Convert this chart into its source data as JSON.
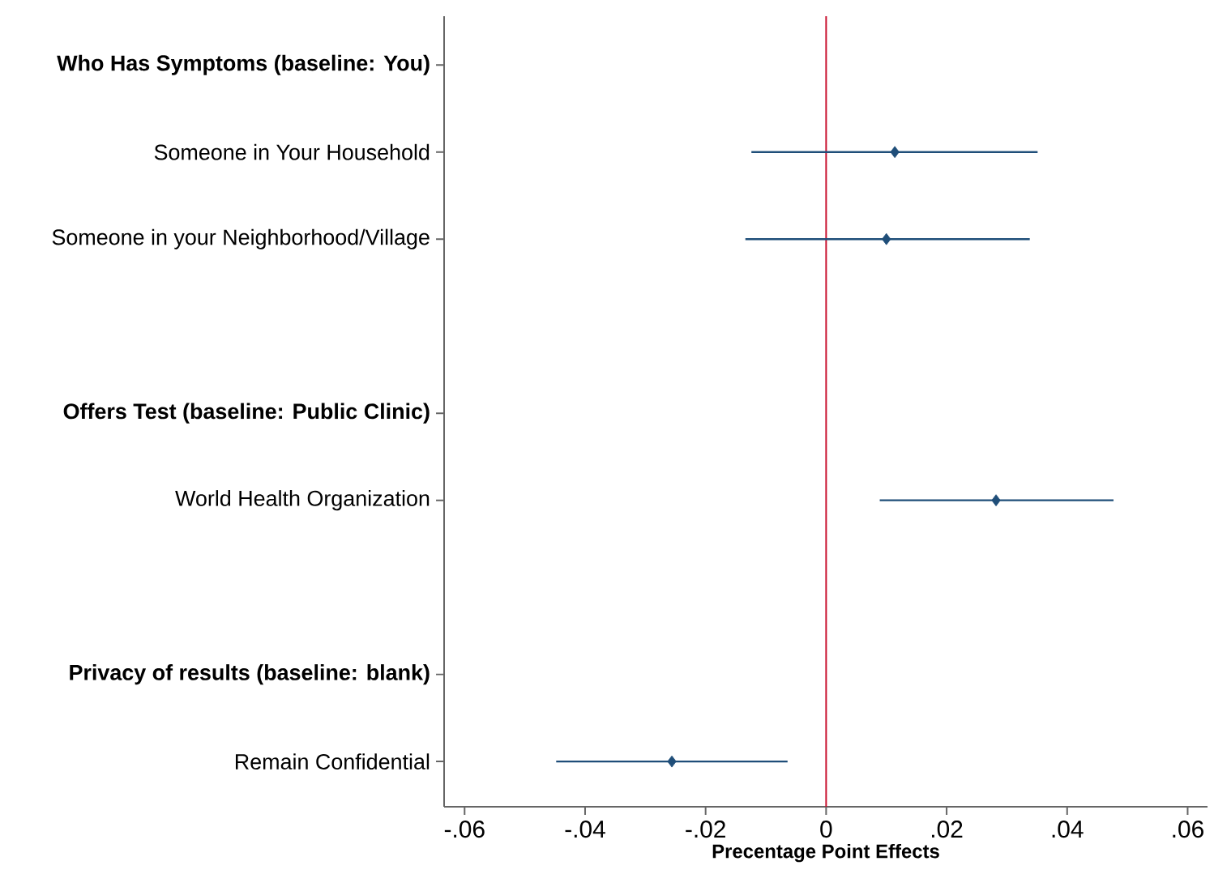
{
  "chart_data": {
    "type": "scatter",
    "orientation": "horizontal",
    "xlabel": "Precentage Point Effects",
    "categories": [
      "**Who Has Symptoms (baseline: You)**",
      "Someone in Your Household",
      "Someone in your Neighborhood/Village",
      null,
      "**Offers Test (baseline: Public Clinic)**",
      "World Health Organization",
      null,
      "**Privacy of results (baseline: blank)**",
      "Remain Confidential"
    ],
    "series": [
      {
        "color": "#1f4e79",
        "values": [
          null,
          0.0114,
          0.01,
          null,
          null,
          0.0282,
          null,
          null,
          -0.0256
        ],
        "errors": [
          null,
          [
            0.0238,
            0.0237
          ],
          [
            0.0234,
            0.0238
          ],
          null,
          null,
          [
            0.0193,
            0.0195
          ],
          null,
          null,
          0.0192
        ]
      }
    ],
    "marker": "diamond",
    "xlim": [
      -0.0634,
      0.0633
    ],
    "xticks": [
      {
        "value": -0.06,
        "label": "-.06"
      },
      {
        "value": -0.04,
        "label": "-.04"
      },
      {
        "value": -0.02,
        "label": "-.02"
      },
      0,
      {
        "value": 0.02,
        "label": ".02"
      },
      {
        "value": 0.04,
        "label": ".04"
      },
      {
        "value": 0.06,
        "label": ".06"
      }
    ],
    "ref_lines": [
      {
        "axis": "x",
        "value": 0,
        "color": "#c8102e"
      }
    ]
  }
}
